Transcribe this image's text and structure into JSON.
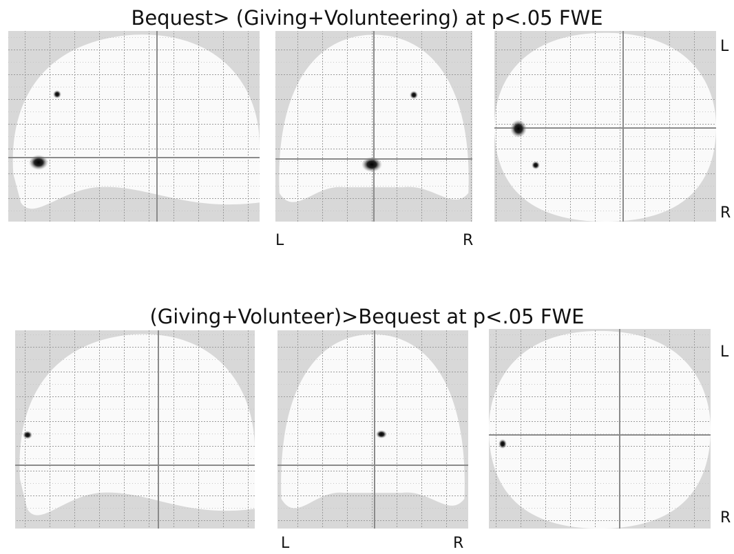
{
  "panels": [
    {
      "title": "Bequest> (Giving+Volunteering) at p<.05 FWE",
      "coronal_left": "L",
      "coronal_right": "R",
      "axial_left": "L",
      "axial_right": "R"
    },
    {
      "title": "(Giving+Volunteer)>Bequest at p<.05 FWE",
      "coronal_left": "L",
      "coronal_right": "R",
      "axial_left": "L",
      "axial_right": "R"
    }
  ]
}
